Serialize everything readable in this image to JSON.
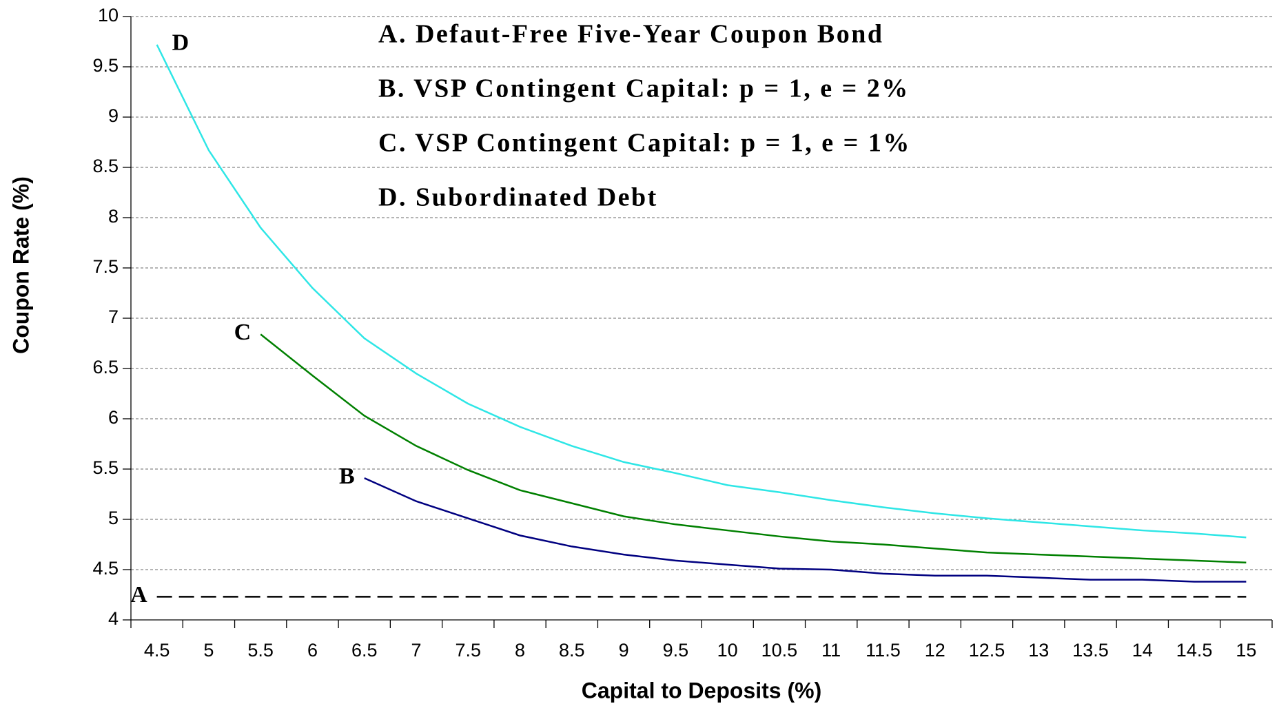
{
  "chart_data": {
    "type": "line",
    "xlabel": "Capital to Deposits (%)",
    "ylabel": "Coupon Rate (%)",
    "categories": [
      "4.5",
      "5",
      "5.5",
      "6",
      "6.5",
      "7",
      "7.5",
      "8",
      "8.5",
      "9",
      "9.5",
      "10",
      "10.5",
      "11",
      "11.5",
      "12",
      "12.5",
      "13",
      "13.5",
      "14",
      "14.5",
      "15"
    ],
    "ylim": [
      4,
      10
    ],
    "yticks": [
      4,
      4.5,
      5,
      5.5,
      6,
      6.5,
      7,
      7.5,
      8,
      8.5,
      9,
      9.5,
      10
    ],
    "grid": true,
    "series": [
      {
        "name": "A. Defaut-Free Five-Year Coupon Bond",
        "label": "A",
        "color": "#000000",
        "dashed": true,
        "values": [
          4.23,
          4.23,
          4.23,
          4.23,
          4.23,
          4.23,
          4.23,
          4.23,
          4.23,
          4.23,
          4.23,
          4.23,
          4.23,
          4.23,
          4.23,
          4.23,
          4.23,
          4.23,
          4.23,
          4.23,
          4.23,
          4.23
        ]
      },
      {
        "name": "B. VSP Contingent Capital: p = 1, e = 2%",
        "label": "B",
        "color": "#000080",
        "values": [
          null,
          null,
          null,
          null,
          5.41,
          5.18,
          5.01,
          4.84,
          4.73,
          4.65,
          4.59,
          4.55,
          4.51,
          4.5,
          4.46,
          4.44,
          4.44,
          4.42,
          4.4,
          4.4,
          4.38,
          4.38
        ]
      },
      {
        "name": "C. VSP Contingent Capital: p = 1, e = 1%",
        "label": "C",
        "color": "#008000",
        "values": [
          null,
          null,
          6.84,
          6.43,
          6.03,
          5.73,
          5.49,
          5.29,
          5.16,
          5.03,
          4.95,
          4.89,
          4.83,
          4.78,
          4.75,
          4.71,
          4.67,
          4.65,
          4.63,
          4.61,
          4.59,
          4.57
        ]
      },
      {
        "name": "D. Subordinated Debt",
        "label": "D",
        "color": "#2ee6e6",
        "values": [
          9.72,
          8.67,
          7.9,
          7.3,
          6.8,
          6.45,
          6.15,
          5.92,
          5.73,
          5.57,
          5.46,
          5.34,
          5.27,
          5.19,
          5.12,
          5.06,
          5.01,
          4.97,
          4.93,
          4.89,
          4.86,
          4.82
        ]
      }
    ]
  }
}
